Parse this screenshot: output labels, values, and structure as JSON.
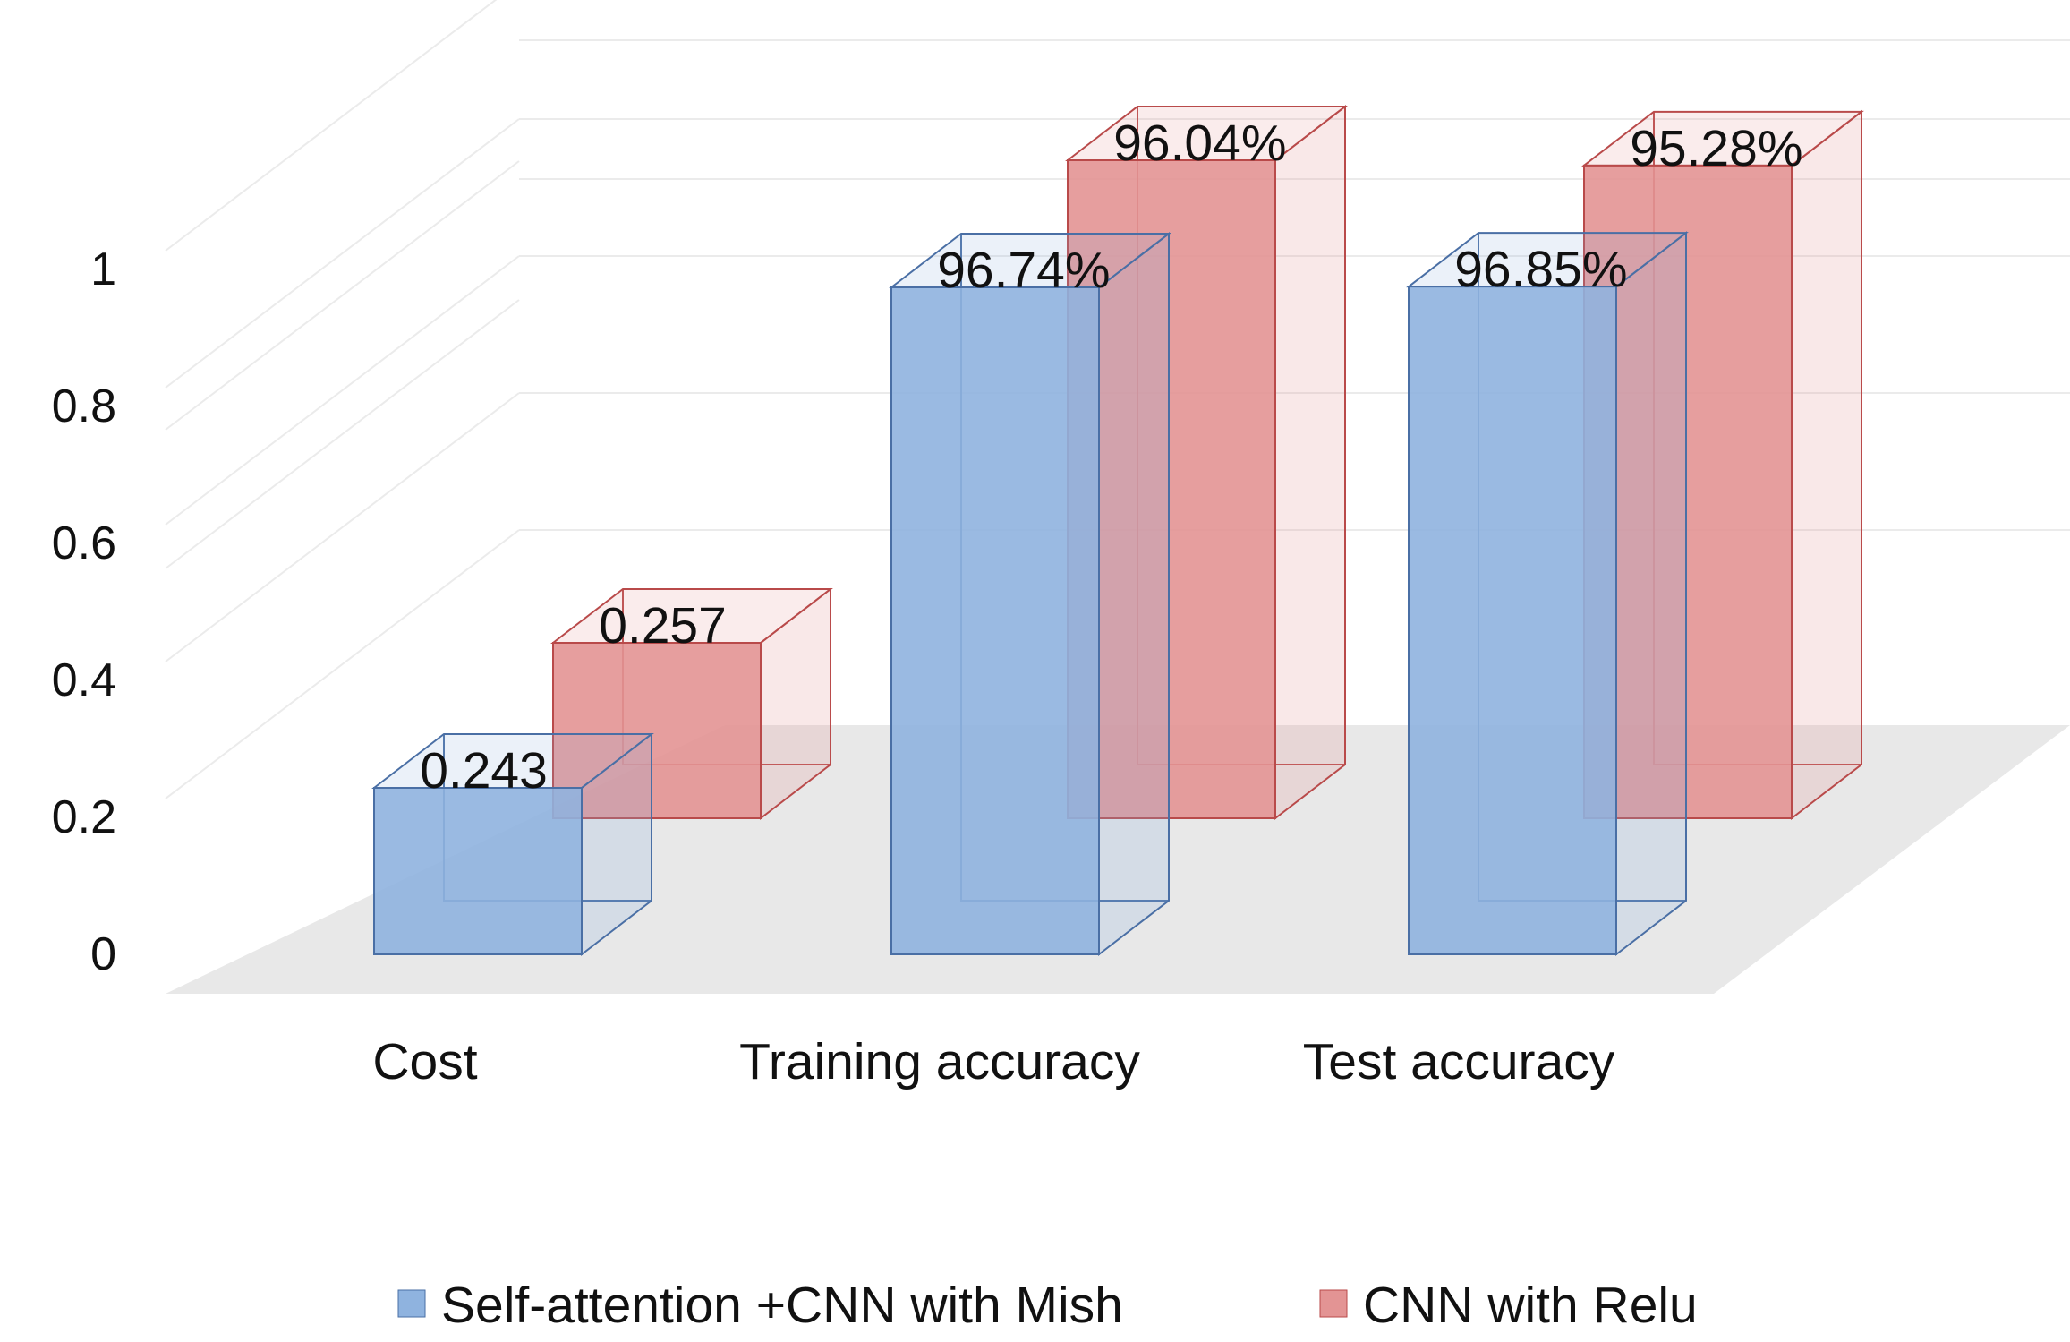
{
  "chart_data": {
    "type": "bar",
    "title": "",
    "xlabel": "",
    "ylabel": "",
    "ylim": [
      0,
      1
    ],
    "yticks": [
      "0",
      "0.2",
      "0.4",
      "0.6",
      "0.8",
      "1"
    ],
    "categories": [
      "Cost",
      "Training accuracy",
      "Test accuracy"
    ],
    "series": [
      {
        "name": "Self-attention +CNN with Mish",
        "values": [
          0.243,
          0.9674,
          0.9685
        ],
        "labels": [
          "0.243",
          "96.74%",
          "96.85%"
        ],
        "color": "#8fb3df",
        "edge": "#4a6fa5"
      },
      {
        "name": "CNN with Relu",
        "values": [
          0.257,
          0.9604,
          0.9528
        ],
        "labels": [
          "0.257",
          "96.04%",
          "95.28%"
        ],
        "color": "#e39494",
        "edge": "#b94a4a"
      }
    ],
    "grid": true,
    "legend": "bottom",
    "style": "3d-clustered-column"
  }
}
